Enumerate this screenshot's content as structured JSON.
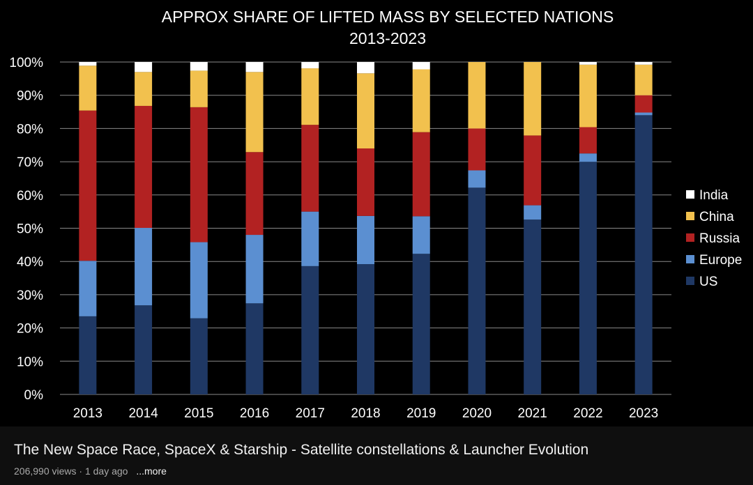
{
  "chart_data": {
    "type": "bar",
    "stacked": true,
    "title": [
      "APPROX SHARE OF LIFTED MASS BY SELECTED NATIONS",
      "2013-2023"
    ],
    "categories": [
      "2013",
      "2014",
      "2015",
      "2016",
      "2017",
      "2018",
      "2019",
      "2020",
      "2021",
      "2022",
      "2023"
    ],
    "ylim": [
      0,
      100
    ],
    "ytick_labels": [
      "0%",
      "10%",
      "20%",
      "30%",
      "40%",
      "50%",
      "60%",
      "70%",
      "80%",
      "90%",
      "100%"
    ],
    "grid": true,
    "legend_position": "right",
    "series": [
      {
        "name": "US",
        "color": "#1f3864",
        "values": [
          23.5,
          26.8,
          22.9,
          27.4,
          38.6,
          39.2,
          42.3,
          62.2,
          52.6,
          70.0,
          84.0
        ]
      },
      {
        "name": "Europe",
        "color": "#5b8fd1",
        "values": [
          16.7,
          23.3,
          22.9,
          20.6,
          16.4,
          14.5,
          11.3,
          5.2,
          4.3,
          2.5,
          0.8
        ]
      },
      {
        "name": "Russia",
        "color": "#b22222",
        "values": [
          45.2,
          36.7,
          40.6,
          24.9,
          26.1,
          20.3,
          25.3,
          12.6,
          21.0,
          7.9,
          5.2
        ]
      },
      {
        "name": "China",
        "color": "#f2c14e",
        "values": [
          13.5,
          10.2,
          11.0,
          24.1,
          17.0,
          22.6,
          18.9,
          20.0,
          22.1,
          18.8,
          9.2
        ]
      },
      {
        "name": "India",
        "color": "#ffffff",
        "values": [
          1.1,
          3.0,
          2.6,
          3.0,
          1.9,
          3.4,
          2.2,
          0.0,
          0.0,
          0.8,
          0.8
        ]
      }
    ]
  },
  "video": {
    "title": "The New Space Race, SpaceX & Starship - Satellite constellations & Launcher Evolution",
    "meta": "206,990 views · 1 day ago",
    "more_label": "...more"
  }
}
